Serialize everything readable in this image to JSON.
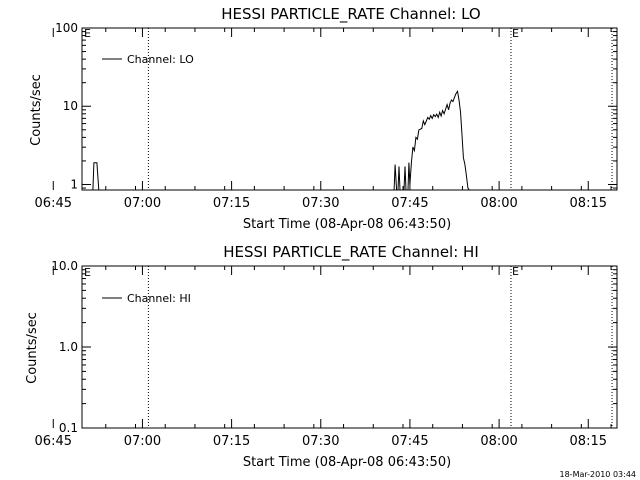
{
  "footer": {
    "timestamp": "18-Mar-2010 03:44"
  },
  "chart_data": [
    {
      "type": "line",
      "title": "HESSI PARTICLE_RATE Channel: LO",
      "xlabel": "Start Time (08-Apr-08 06:43:50)",
      "ylabel": "Counts/sec",
      "y_scale": "log",
      "ylim": [
        0.85,
        100
      ],
      "xlim_minutes": [
        6.0,
        96.0
      ],
      "x_tick_labels": [
        "06:45",
        "07:00",
        "07:15",
        "07:30",
        "07:45",
        "08:00",
        "08:15"
      ],
      "y_tick_labels": [
        "1",
        "10",
        "100"
      ],
      "legend": {
        "label": "Channel: LO",
        "position": "top-left"
      },
      "event_markers": [
        {
          "time": "07:01",
          "label": ""
        },
        {
          "time": "08:02",
          "label": "E"
        },
        {
          "time": "08:19",
          "label": ""
        }
      ],
      "left_marker_label": "E",
      "series": [
        {
          "name": "Channel: LO",
          "x": [
            "06:51:40",
            "06:51:50",
            "06:52:00",
            "06:52:20",
            "06:52:40",
            "06:52:50",
            "07:42:20",
            "07:42:30",
            "07:42:45",
            "07:43:00",
            "07:43:10",
            "07:43:20",
            "07:44:00",
            "07:44:10",
            "07:44:20",
            "07:44:40",
            "07:44:50",
            "07:45:00",
            "07:45:15",
            "07:45:30",
            "07:45:45",
            "07:46:00",
            "07:46:15",
            "07:46:30",
            "07:47:00",
            "07:47:15",
            "07:47:30",
            "07:48:00",
            "07:48:15",
            "07:48:30",
            "07:48:45",
            "07:49:00",
            "07:49:15",
            "07:49:30",
            "07:49:45",
            "07:50:00",
            "07:50:15",
            "07:50:30",
            "07:50:45",
            "07:51:00",
            "07:51:15",
            "07:51:30",
            "07:51:45",
            "07:52:00",
            "07:52:15",
            "07:52:30",
            "07:52:45",
            "07:53:00",
            "07:53:15",
            "07:53:30",
            "07:53:45",
            "07:54:00",
            "07:54:15",
            "07:54:30",
            "07:54:45",
            "07:55:00"
          ],
          "values": [
            0.85,
            1.9,
            1.9,
            1.9,
            0.85,
            0.85,
            0.85,
            1.8,
            0.85,
            0.85,
            1.7,
            0.85,
            0.85,
            1.7,
            0.85,
            0.85,
            1.9,
            1.0,
            1.9,
            3.0,
            2.7,
            4.0,
            3.8,
            5.0,
            5.2,
            6.5,
            5.8,
            7.2,
            6.8,
            7.6,
            7.0,
            7.8,
            7.4,
            7.9,
            7.2,
            8.4,
            7.5,
            8.8,
            8.0,
            9.2,
            10.5,
            9.0,
            11.0,
            12.0,
            11.5,
            13.0,
            14.5,
            15.5,
            12.0,
            8.5,
            4.5,
            2.2,
            1.8,
            1.3,
            0.9,
            0.85
          ]
        }
      ]
    },
    {
      "type": "line",
      "title": "HESSI PARTICLE_RATE Channel: HI",
      "xlabel": "Start Time (08-Apr-08 06:43:50)",
      "ylabel": "Counts/sec",
      "y_scale": "log",
      "ylim": [
        0.1,
        10
      ],
      "xlim_minutes": [
        6.0,
        96.0
      ],
      "x_tick_labels": [
        "06:45",
        "07:00",
        "07:15",
        "07:30",
        "07:45",
        "08:00",
        "08:15"
      ],
      "y_tick_labels": [
        "0.1",
        "1.0",
        "10.0"
      ],
      "legend": {
        "label": "Channel: HI",
        "position": "top-left"
      },
      "event_markers": [
        {
          "time": "07:01",
          "label": ""
        },
        {
          "time": "08:02",
          "label": "E"
        },
        {
          "time": "08:19",
          "label": ""
        }
      ],
      "left_marker_label": "E",
      "series": [
        {
          "name": "Channel: HI",
          "x": [],
          "values": []
        }
      ]
    }
  ]
}
